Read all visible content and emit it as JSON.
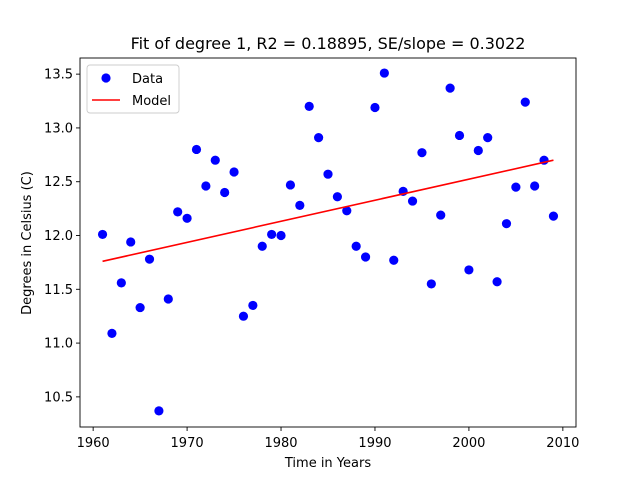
{
  "chart_data": {
    "type": "scatter",
    "title": "Fit of degree 1, R2 = 0.18895, SE/slope = 0.3022",
    "xlabel": "Time in Years",
    "ylabel": "Degrees in Celsius (C)",
    "xlim": [
      1958.6,
      2011.4
    ],
    "ylim": [
      10.22,
      13.65
    ],
    "xticks": [
      1960,
      1970,
      1980,
      1990,
      2000,
      2010
    ],
    "yticks": [
      10.5,
      11.0,
      11.5,
      12.0,
      12.5,
      13.0,
      13.5
    ],
    "legend_position": "top-left",
    "colors": {
      "data": "#0000ff",
      "model": "#ff0000"
    },
    "series": [
      {
        "name": "Data",
        "kind": "points",
        "x": [
          1961,
          1962,
          1963,
          1964,
          1965,
          1966,
          1967,
          1968,
          1969,
          1970,
          1971,
          1972,
          1973,
          1974,
          1975,
          1976,
          1977,
          1978,
          1979,
          1980,
          1981,
          1982,
          1983,
          1984,
          1985,
          1986,
          1987,
          1988,
          1989,
          1990,
          1991,
          1992,
          1993,
          1994,
          1995,
          1996,
          1997,
          1998,
          1999,
          2000,
          2001,
          2002,
          2003,
          2004,
          2005,
          2006,
          2007,
          2008,
          2009
        ],
        "y": [
          12.01,
          11.09,
          11.56,
          11.94,
          11.33,
          11.78,
          10.37,
          11.41,
          12.22,
          12.16,
          12.8,
          12.46,
          12.7,
          12.4,
          12.59,
          11.25,
          11.35,
          11.9,
          12.01,
          12.0,
          12.47,
          12.28,
          13.2,
          12.91,
          12.57,
          12.36,
          12.23,
          11.9,
          11.8,
          13.19,
          13.51,
          11.77,
          12.41,
          12.32,
          12.77,
          11.55,
          12.19,
          13.37,
          12.93,
          11.68,
          12.79,
          12.91,
          11.57,
          12.11,
          12.45,
          13.24,
          12.46,
          12.7,
          12.18
        ]
      },
      {
        "name": "Model",
        "kind": "line",
        "x": [
          1961,
          2009
        ],
        "y": [
          11.76,
          12.7
        ]
      }
    ]
  }
}
